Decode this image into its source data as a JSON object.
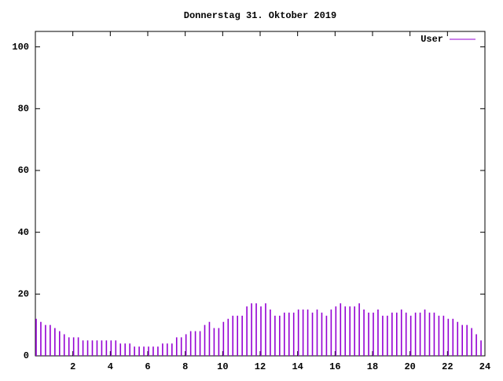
{
  "chart_data": {
    "type": "impulse",
    "title": "Donnerstag 31. Oktober 2019",
    "x": [
      0,
      0.25,
      0.5,
      0.75,
      1,
      1.25,
      1.5,
      1.75,
      2,
      2.25,
      2.5,
      2.75,
      3,
      3.25,
      3.5,
      3.75,
      4,
      4.25,
      4.5,
      4.75,
      5,
      5.25,
      5.5,
      5.75,
      6,
      6.25,
      6.5,
      6.75,
      7,
      7.25,
      7.5,
      7.75,
      8,
      8.25,
      8.5,
      8.75,
      9,
      9.25,
      9.5,
      9.75,
      10,
      10.25,
      10.5,
      10.75,
      11,
      11.25,
      11.5,
      11.75,
      12,
      12.25,
      12.5,
      12.75,
      13,
      13.25,
      13.5,
      13.75,
      14,
      14.25,
      14.5,
      14.75,
      15,
      15.25,
      15.5,
      15.75,
      16,
      16.25,
      16.5,
      16.75,
      17,
      17.25,
      17.5,
      17.75,
      18,
      18.25,
      18.5,
      18.75,
      19,
      19.25,
      19.5,
      19.75,
      20,
      20.25,
      20.5,
      20.75,
      21,
      21.25,
      21.5,
      21.75,
      22,
      22.25,
      22.5,
      22.75,
      23,
      23.25,
      23.5,
      23.75
    ],
    "series": [
      {
        "name": "User",
        "color": "#9400d3",
        "values": [
          12,
          11,
          10,
          10,
          9,
          8,
          7,
          6,
          6,
          6,
          5,
          5,
          5,
          5,
          5,
          5,
          5,
          5,
          4,
          4,
          4,
          3,
          3,
          3,
          3,
          3,
          3,
          4,
          4,
          4,
          6,
          6,
          7,
          8,
          8,
          8,
          10,
          11,
          9,
          9,
          11,
          12,
          13,
          13,
          13,
          16,
          17,
          17,
          16,
          17,
          15,
          13,
          13,
          14,
          14,
          14,
          15,
          15,
          15,
          14,
          15,
          14,
          13,
          15,
          16,
          17,
          16,
          16,
          16,
          17,
          15,
          14,
          14,
          15,
          13,
          13,
          14,
          14,
          15,
          14,
          13,
          14,
          14,
          15,
          14,
          14,
          13,
          13,
          12,
          12,
          11,
          10,
          10,
          9,
          7,
          5
        ]
      }
    ],
    "xlim": [
      0,
      24
    ],
    "xticks": [
      2,
      4,
      6,
      8,
      10,
      12,
      14,
      16,
      18,
      20,
      22,
      24
    ],
    "ylim": [
      0,
      105
    ],
    "yticks": [
      0,
      20,
      40,
      60,
      80,
      100
    ],
    "legend": "top-right"
  }
}
